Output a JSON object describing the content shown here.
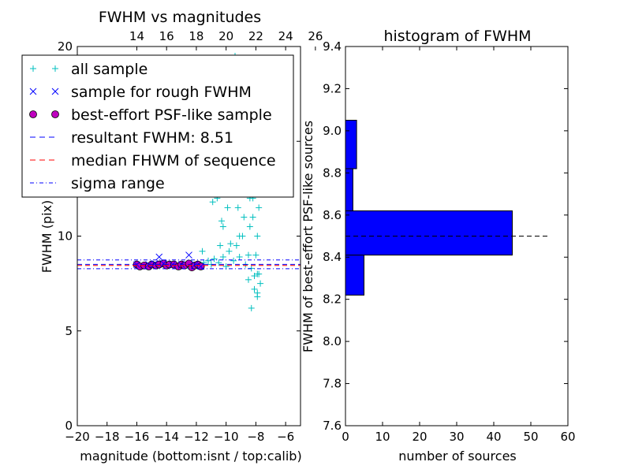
{
  "chart_data": [
    {
      "type": "scatter",
      "title": "FWHM vs magnitudes",
      "xlabel": "magnitude (bottom:isnt / top:calib)",
      "ylabel": "FWHM (pix)",
      "xlim": [
        -20,
        -5
      ],
      "ylim": [
        0,
        20
      ],
      "x_ticks": [
        -20,
        -18,
        -16,
        -14,
        -12,
        -10,
        -8,
        -6
      ],
      "x_tick_labels": [
        "−20",
        "−18",
        "−16",
        "−14",
        "−12",
        "−10",
        "−8",
        "−6"
      ],
      "y_ticks": [
        0,
        5,
        10,
        15,
        20
      ],
      "y_tick_labels": [
        "0",
        "5",
        "10",
        "15",
        "20"
      ],
      "top_ticks": [
        14,
        16,
        18,
        20,
        22,
        24,
        26
      ],
      "top_tick_labels": [
        "14",
        "16",
        "18",
        "20",
        "22",
        "24",
        "26"
      ],
      "top_offset": 30,
      "legend": {
        "placement": "upper-left",
        "entries": [
          {
            "label": "all sample",
            "marker": "plus",
            "color": "#00bfbf"
          },
          {
            "label": "sample for rough FWHM",
            "marker": "x",
            "color": "#0000ff"
          },
          {
            "label": "best-effort PSF-like sample",
            "marker": "circle",
            "color": "#bf00bf"
          },
          {
            "label": "resultant FWHM: 8.51",
            "marker": "dashed-line",
            "color": "#0000ff"
          },
          {
            "label": "median FHWM of sequence",
            "marker": "dashed-line",
            "color": "#ff0000"
          },
          {
            "label": "sigma range",
            "marker": "dashdot-line",
            "color": "#0000ff"
          }
        ]
      },
      "reference_lines": {
        "resultant_fwhm": 8.51,
        "median_fwhm_sequence": 8.45,
        "sigma_range": [
          8.28,
          8.74
        ]
      },
      "series": [
        {
          "name": "best-effort PSF-like sample",
          "marker": "circle",
          "color": "#bf00bf",
          "x": [
            -16.0,
            -15.8,
            -15.5,
            -15.2,
            -15.0,
            -14.7,
            -14.5,
            -14.2,
            -14.0,
            -13.8,
            -13.5,
            -13.2,
            -13.0,
            -12.8,
            -12.5,
            -12.3,
            -12.1,
            -11.9,
            -11.7
          ],
          "y": [
            8.5,
            8.4,
            8.45,
            8.4,
            8.5,
            8.45,
            8.5,
            8.55,
            8.45,
            8.5,
            8.5,
            8.4,
            8.5,
            8.45,
            8.55,
            8.35,
            8.45,
            8.5,
            8.4
          ]
        },
        {
          "name": "sample for rough FWHM",
          "marker": "x",
          "color": "#0000ff",
          "x": [
            -16.0,
            -15.2,
            -14.8,
            -14.5,
            -14.2,
            -13.6,
            -13.0,
            -12.5,
            -12.1,
            -11.7
          ],
          "y": [
            8.5,
            8.5,
            8.55,
            8.9,
            8.55,
            8.5,
            8.5,
            9.0,
            8.5,
            8.4
          ]
        },
        {
          "name": "all sample",
          "marker": "plus",
          "color": "#00bfbf",
          "x": [
            -16.0,
            -15.7,
            -15.3,
            -15.0,
            -14.7,
            -14.4,
            -14.1,
            -13.8,
            -13.5,
            -13.2,
            -12.9,
            -12.6,
            -12.3,
            -12.0,
            -11.7,
            -11.5,
            -11.2,
            -11.0,
            -10.8,
            -10.5,
            -10.2,
            -10.0,
            -9.8,
            -9.5,
            -9.3,
            -9.1,
            -8.9,
            -8.7,
            -8.5,
            -8.3,
            -8.1,
            -7.9,
            -7.7,
            -10.6,
            -10.2,
            -9.9,
            -9.6,
            -9.4,
            -9.2,
            -9.0,
            -8.8,
            -8.6,
            -8.4,
            -8.2,
            -8.0,
            -7.8,
            -10.4,
            -9.7,
            -9.5,
            -9.0,
            -8.8,
            -8.6,
            -8.3,
            -8.1,
            -7.9,
            -9.8,
            -9.3,
            -8.7,
            -8.5,
            -8.2,
            -8.0,
            -9.6,
            -9.2,
            -8.9,
            -8.4,
            -8.1,
            -7.8,
            -10.0,
            -9.4,
            -8.8,
            -8.3,
            -8.0,
            -9.1,
            -8.6,
            -8.2,
            -11.6,
            -10.9,
            -10.3,
            -9.7,
            -8.5,
            -7.9,
            -8.3,
            -8.1,
            -7.9
          ],
          "y": [
            8.5,
            8.4,
            8.45,
            8.5,
            8.45,
            8.5,
            8.55,
            8.5,
            8.5,
            8.4,
            8.5,
            8.45,
            8.55,
            8.45,
            8.5,
            8.6,
            8.7,
            8.5,
            8.8,
            8.6,
            8.9,
            8.4,
            9.2,
            8.7,
            9.5,
            8.9,
            10.0,
            8.5,
            9.0,
            8.3,
            7.9,
            8.0,
            7.5,
            12.0,
            10.5,
            11.5,
            14.0,
            12.5,
            13.0,
            15.5,
            11.0,
            14.5,
            12.0,
            16.0,
            13.5,
            11.5,
            9.5,
            17.0,
            16.0,
            18.0,
            12.5,
            17.5,
            15.0,
            13.0,
            10.0,
            19.0,
            18.5,
            16.5,
            14.0,
            12.0,
            9.0,
            15.0,
            11.5,
            13.5,
            10.5,
            14.5,
            8.0,
            18.0,
            19.5,
            20.5,
            17.0,
            15.5,
            10.0,
            19.0,
            11.0,
            9.2,
            11.8,
            10.8,
            9.6,
            7.7,
            7.0,
            6.2,
            7.2,
            6.8
          ]
        }
      ]
    },
    {
      "type": "bar",
      "orientation": "horizontal",
      "title": "histogram of FWHM",
      "xlabel": "number of sources",
      "ylabel": "FWHM of best-effort PSF-like sources",
      "xlim": [
        0,
        60
      ],
      "ylim": [
        7.6,
        9.4
      ],
      "x_ticks": [
        0,
        10,
        20,
        30,
        40,
        50,
        60
      ],
      "x_tick_labels": [
        "0",
        "10",
        "20",
        "30",
        "40",
        "50",
        "60"
      ],
      "y_ticks": [
        7.6,
        7.8,
        8.0,
        8.2,
        8.4,
        8.6,
        8.8,
        9.0,
        9.2,
        9.4
      ],
      "y_tick_labels": [
        "7.6",
        "7.8",
        "8.0",
        "8.2",
        "8.4",
        "8.6",
        "8.8",
        "9.0",
        "9.2",
        "9.4"
      ],
      "color": "#0000ff",
      "bins": [
        {
          "low": 8.22,
          "high": 8.41,
          "count": 5
        },
        {
          "low": 8.41,
          "high": 8.62,
          "count": 45
        },
        {
          "low": 8.62,
          "high": 8.82,
          "count": 2
        },
        {
          "low": 8.82,
          "high": 9.05,
          "count": 3
        }
      ],
      "reference_line": {
        "value": 8.5,
        "xmax": 55,
        "style": "dashed",
        "color": "#000000"
      }
    }
  ]
}
